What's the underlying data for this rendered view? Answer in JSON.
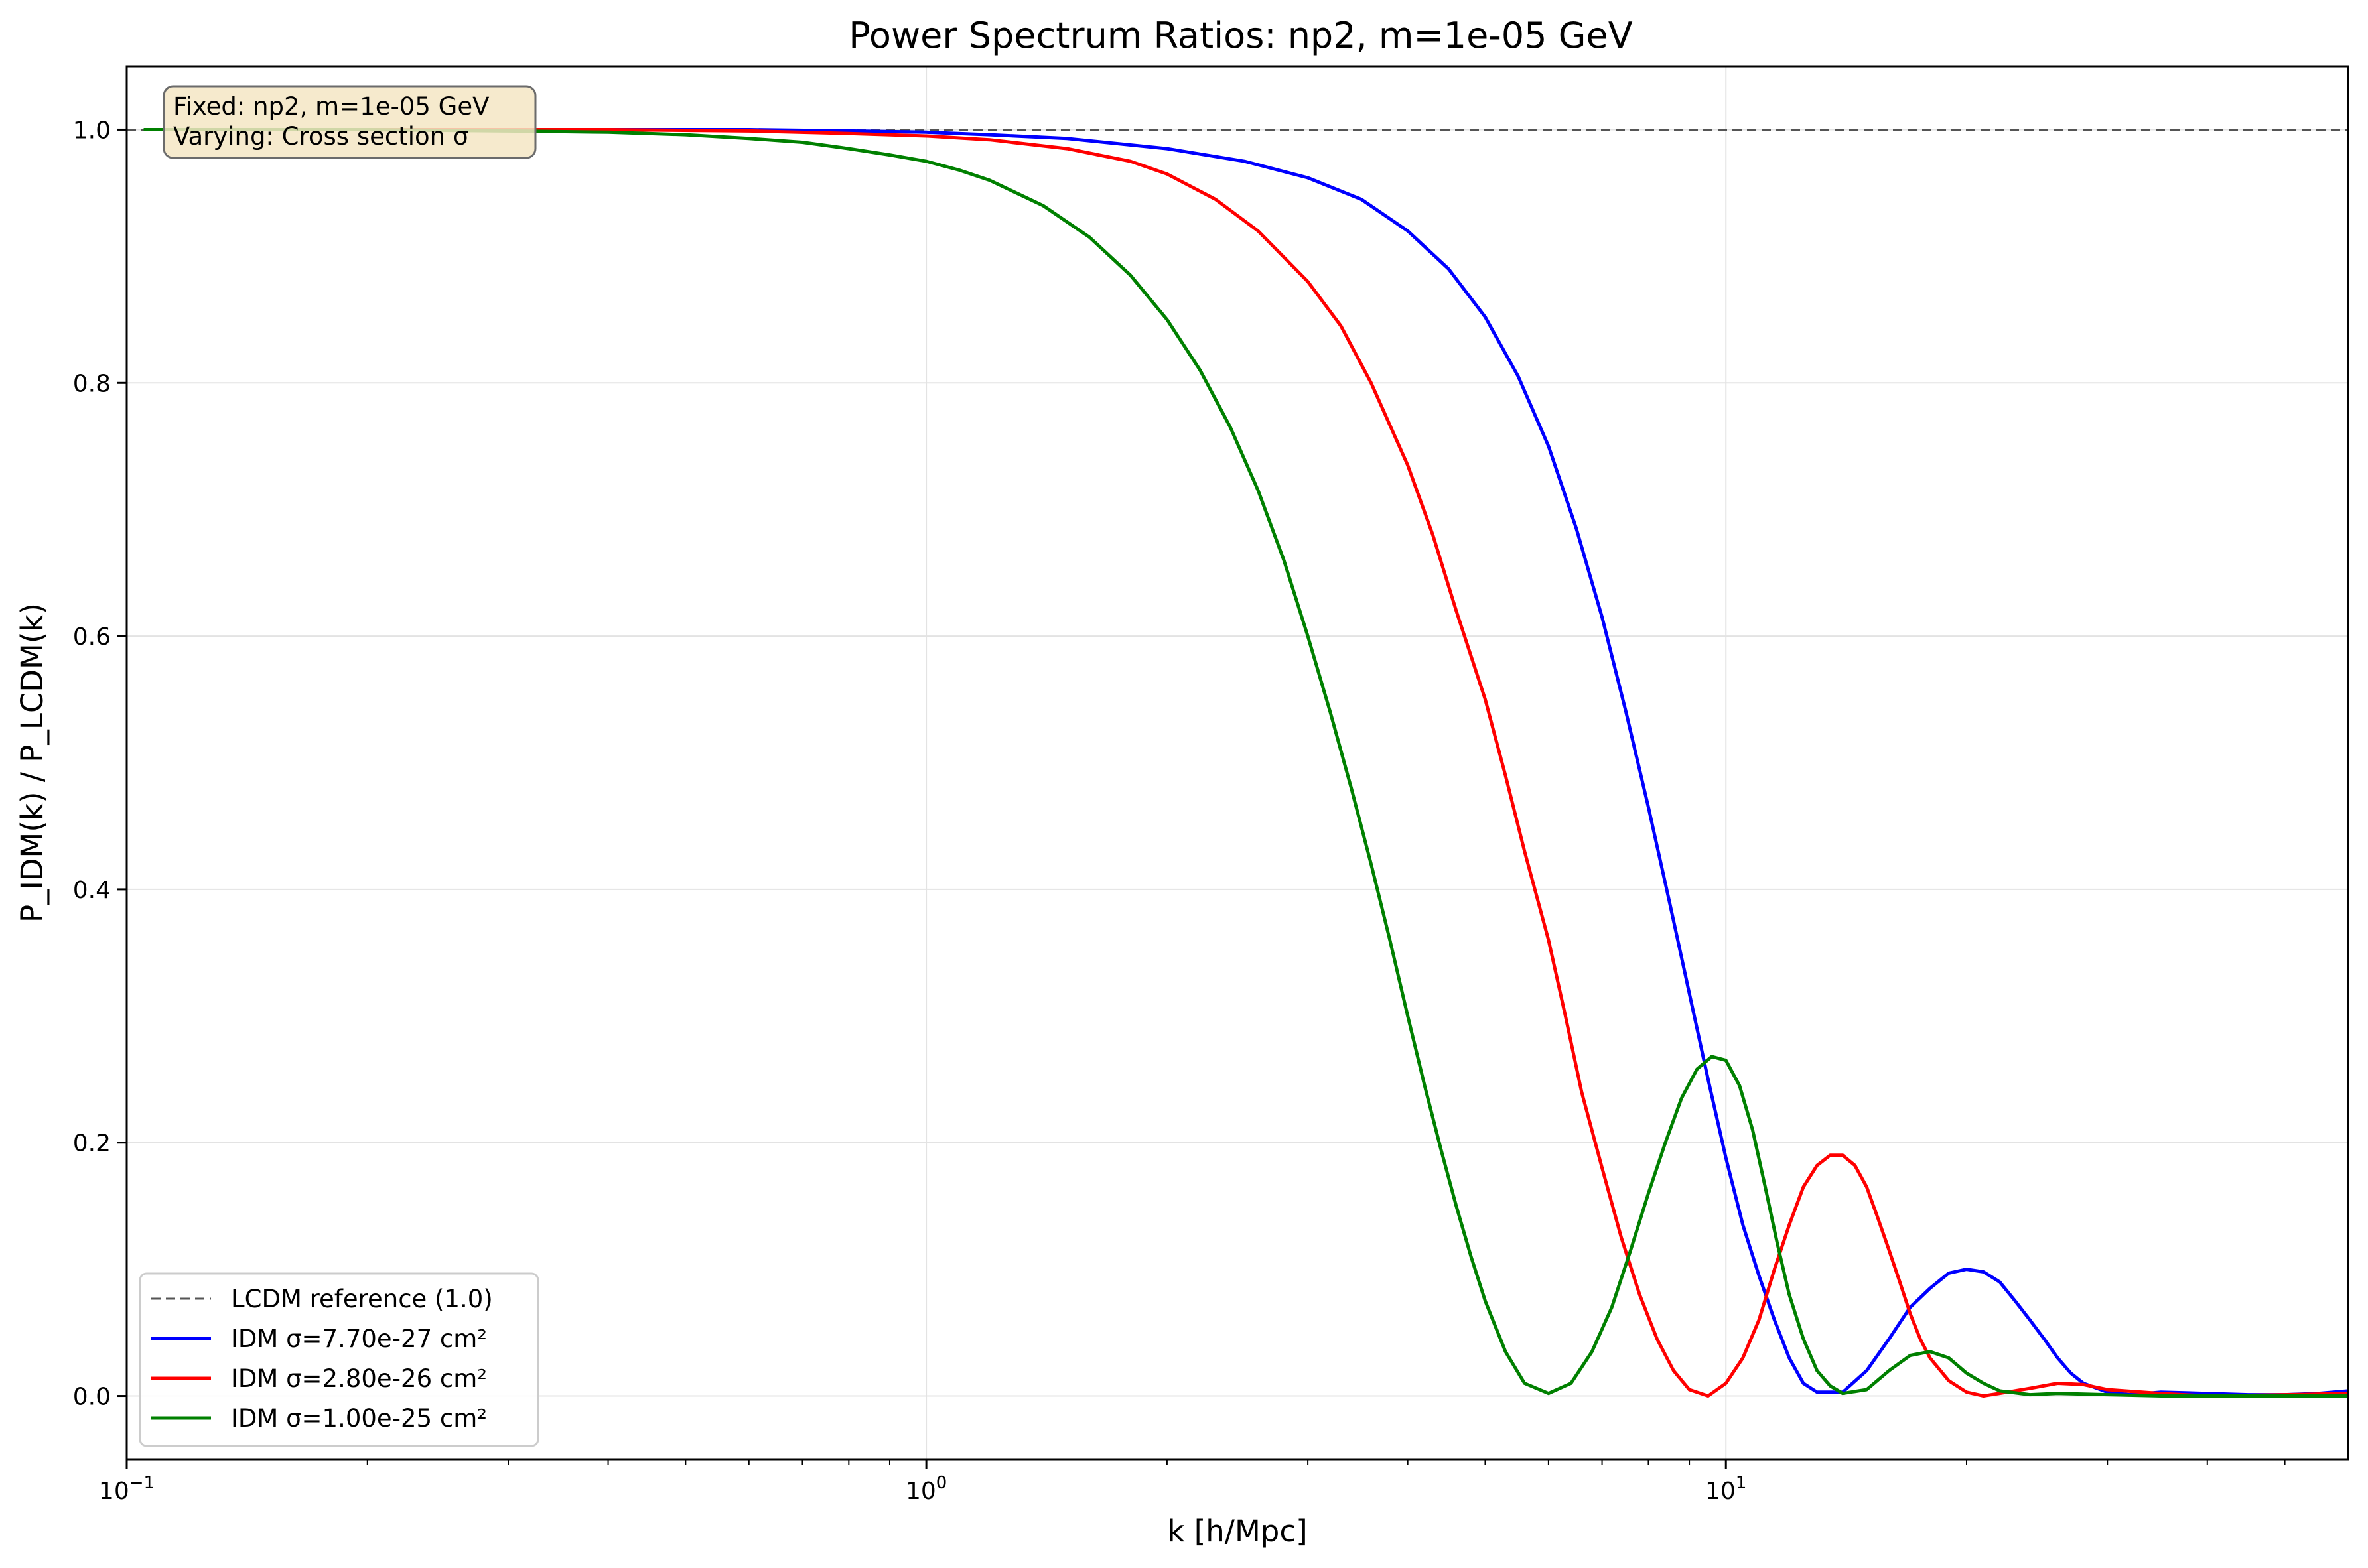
{
  "chart_data": {
    "type": "line",
    "title": "Power Spectrum Ratios: np2, m=1e-05 GeV",
    "xlabel": "k [h/Mpc]",
    "ylabel": "P_IDM(k) / P_LCDM(k)",
    "xscale": "log",
    "xlim": [
      0.1,
      60
    ],
    "ylim": [
      -0.05,
      1.05
    ],
    "x_ticks": [
      {
        "value": 0.1,
        "base": "10",
        "exp": "−1"
      },
      {
        "value": 1,
        "base": "10",
        "exp": "0"
      },
      {
        "value": 10,
        "base": "10",
        "exp": "1"
      }
    ],
    "y_ticks": [
      {
        "value": 0.0,
        "label": "0.0"
      },
      {
        "value": 0.2,
        "label": "0.2"
      },
      {
        "value": 0.4,
        "label": "0.4"
      },
      {
        "value": 0.6,
        "label": "0.6"
      },
      {
        "value": 0.8,
        "label": "0.8"
      },
      {
        "value": 1.0,
        "label": "1.0"
      }
    ],
    "grid": true,
    "legend_position": "lower-left",
    "annotation": {
      "lines": [
        "Fixed: np2, m=1e-05 GeV",
        "Varying: Cross section σ"
      ],
      "position": "top-left"
    },
    "reference_line": {
      "name": "LCDM reference (1.0)",
      "y": 1.0,
      "color": "#555555",
      "style": "dashed"
    },
    "series": [
      {
        "name": "IDM σ=7.70e-27 cm²",
        "color": "#0000ff",
        "x": [
          0.105,
          0.2,
          0.4,
          0.6,
          0.8,
          1.0,
          1.2,
          1.5,
          2.0,
          2.5,
          3.0,
          3.5,
          4.0,
          4.5,
          5.0,
          5.5,
          6.0,
          6.5,
          7.0,
          7.5,
          8.0,
          8.5,
          9.0,
          9.5,
          10.0,
          10.5,
          11.0,
          11.5,
          12.0,
          12.5,
          13.0,
          14.0,
          15.0,
          16.0,
          17.0,
          18.0,
          19.0,
          20.0,
          21.0,
          22.0,
          23.0,
          24.0,
          25.0,
          26.0,
          27.0,
          28.0,
          30.0,
          32.0,
          35.0,
          40.0,
          45.0,
          50.0,
          55.0,
          60.0
        ],
        "values": [
          1.0,
          1.0,
          1.0,
          1.0,
          0.999,
          0.998,
          0.996,
          0.993,
          0.985,
          0.975,
          0.962,
          0.945,
          0.92,
          0.89,
          0.852,
          0.805,
          0.75,
          0.685,
          0.615,
          0.54,
          0.465,
          0.39,
          0.318,
          0.25,
          0.188,
          0.135,
          0.095,
          0.06,
          0.03,
          0.01,
          0.003,
          0.003,
          0.02,
          0.045,
          0.07,
          0.085,
          0.097,
          0.1,
          0.098,
          0.09,
          0.075,
          0.06,
          0.045,
          0.03,
          0.018,
          0.01,
          0.003,
          0.001,
          0.003,
          0.002,
          0.001,
          0.001,
          0.002,
          0.004
        ]
      },
      {
        "name": "IDM σ=2.80e-26 cm²",
        "color": "#ff0000",
        "x": [
          0.105,
          0.2,
          0.4,
          0.6,
          0.8,
          1.0,
          1.2,
          1.5,
          1.8,
          2.0,
          2.3,
          2.6,
          3.0,
          3.3,
          3.6,
          4.0,
          4.3,
          4.6,
          5.0,
          5.3,
          5.6,
          6.0,
          6.3,
          6.6,
          7.0,
          7.4,
          7.8,
          8.2,
          8.6,
          9.0,
          9.5,
          10.0,
          10.5,
          11.0,
          11.5,
          12.0,
          12.5,
          13.0,
          13.5,
          14.0,
          14.5,
          15.0,
          15.5,
          16.0,
          16.5,
          17.0,
          17.5,
          18.0,
          19.0,
          20.0,
          21.0,
          22.0,
          24.0,
          26.0,
          28.0,
          30.0,
          35.0,
          40.0,
          50.0,
          60.0
        ],
        "values": [
          1.0,
          1.0,
          1.0,
          0.999,
          0.997,
          0.995,
          0.992,
          0.985,
          0.975,
          0.965,
          0.945,
          0.92,
          0.88,
          0.845,
          0.8,
          0.735,
          0.68,
          0.62,
          0.55,
          0.49,
          0.43,
          0.36,
          0.3,
          0.24,
          0.18,
          0.125,
          0.08,
          0.045,
          0.02,
          0.005,
          0.0,
          0.01,
          0.03,
          0.06,
          0.1,
          0.135,
          0.165,
          0.182,
          0.19,
          0.19,
          0.182,
          0.165,
          0.14,
          0.115,
          0.09,
          0.065,
          0.045,
          0.03,
          0.012,
          0.003,
          0.0,
          0.002,
          0.006,
          0.01,
          0.009,
          0.005,
          0.002,
          0.0,
          0.001,
          0.002
        ]
      },
      {
        "name": "IDM σ=1.00e-25 cm²",
        "color": "#008000",
        "x": [
          0.105,
          0.2,
          0.3,
          0.4,
          0.5,
          0.6,
          0.7,
          0.8,
          0.9,
          1.0,
          1.1,
          1.2,
          1.4,
          1.6,
          1.8,
          2.0,
          2.2,
          2.4,
          2.6,
          2.8,
          3.0,
          3.2,
          3.4,
          3.6,
          3.8,
          4.0,
          4.2,
          4.4,
          4.6,
          4.8,
          5.0,
          5.3,
          5.6,
          6.0,
          6.4,
          6.8,
          7.2,
          7.6,
          8.0,
          8.4,
          8.8,
          9.2,
          9.6,
          10.0,
          10.4,
          10.8,
          11.2,
          11.6,
          12.0,
          12.5,
          13.0,
          13.5,
          14.0,
          15.0,
          16.0,
          17.0,
          18.0,
          19.0,
          20.0,
          21.0,
          22.0,
          24.0,
          26.0,
          30.0,
          35.0,
          40.0,
          50.0,
          60.0
        ],
        "values": [
          1.0,
          1.0,
          0.999,
          0.998,
          0.996,
          0.993,
          0.99,
          0.985,
          0.98,
          0.975,
          0.968,
          0.96,
          0.94,
          0.915,
          0.885,
          0.85,
          0.81,
          0.765,
          0.715,
          0.66,
          0.6,
          0.54,
          0.48,
          0.42,
          0.36,
          0.3,
          0.245,
          0.195,
          0.15,
          0.11,
          0.075,
          0.035,
          0.01,
          0.002,
          0.01,
          0.035,
          0.07,
          0.115,
          0.16,
          0.2,
          0.235,
          0.258,
          0.268,
          0.265,
          0.245,
          0.21,
          0.165,
          0.12,
          0.08,
          0.045,
          0.02,
          0.008,
          0.002,
          0.005,
          0.02,
          0.032,
          0.035,
          0.03,
          0.018,
          0.01,
          0.004,
          0.001,
          0.002,
          0.001,
          0.0,
          0.0,
          0.0,
          0.0
        ]
      }
    ]
  }
}
